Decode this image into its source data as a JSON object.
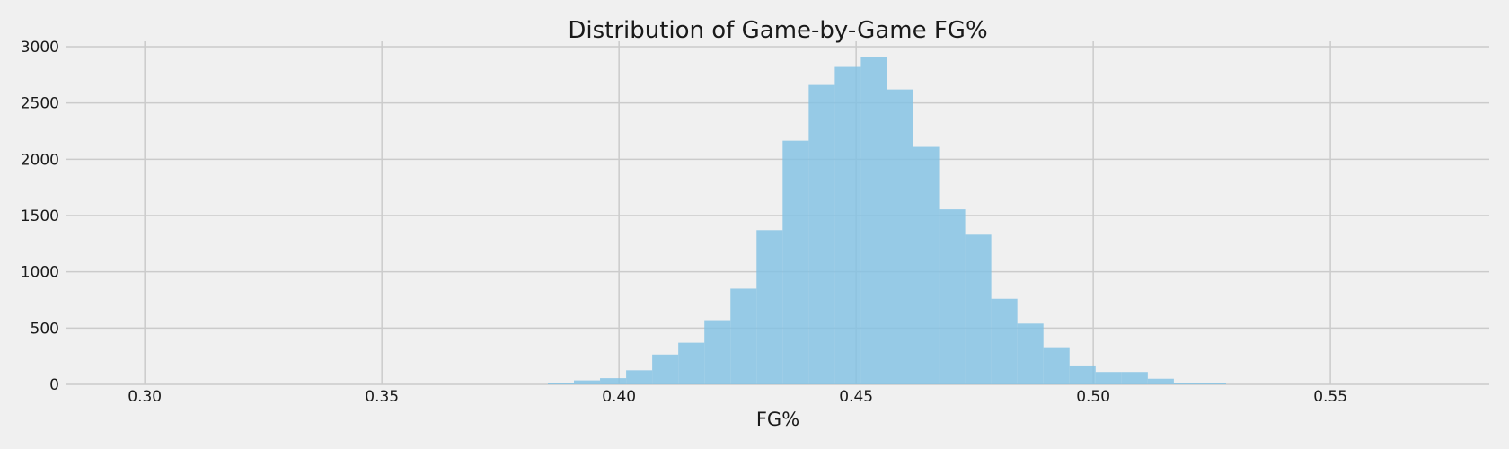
{
  "chart_data": {
    "type": "bar",
    "title": "Distribution of Game-by-Game FG%",
    "xlabel": "FG%",
    "ylabel": "",
    "xlim": [
      0.285,
      0.5835
    ],
    "ylim": [
      0,
      3000
    ],
    "xticks": [
      "0.30",
      "0.35",
      "0.40",
      "0.45",
      "0.50",
      "0.55"
    ],
    "xtick_values": [
      0.3,
      0.35,
      0.4,
      0.45,
      0.5,
      0.55
    ],
    "yticks": [
      "0",
      "500",
      "1000",
      "1500",
      "2000",
      "2500",
      "3000"
    ],
    "ytick_values": [
      0,
      500,
      1000,
      1500,
      2000,
      2500,
      3000
    ],
    "grid": true,
    "legend": "none",
    "color": "#7fc1e3",
    "bin_width": 0.0055,
    "bins": [
      {
        "x0": 0.385,
        "count": 8
      },
      {
        "x0": 0.3905,
        "count": 35
      },
      {
        "x0": 0.396,
        "count": 55
      },
      {
        "x0": 0.4015,
        "count": 125
      },
      {
        "x0": 0.407,
        "count": 265
      },
      {
        "x0": 0.4125,
        "count": 370
      },
      {
        "x0": 0.418,
        "count": 570
      },
      {
        "x0": 0.4235,
        "count": 850
      },
      {
        "x0": 0.429,
        "count": 1370
      },
      {
        "x0": 0.4345,
        "count": 2165
      },
      {
        "x0": 0.44,
        "count": 2660
      },
      {
        "x0": 0.4455,
        "count": 2820
      },
      {
        "x0": 0.451,
        "count": 2910
      },
      {
        "x0": 0.4565,
        "count": 2620
      },
      {
        "x0": 0.462,
        "count": 2110
      },
      {
        "x0": 0.4675,
        "count": 1555
      },
      {
        "x0": 0.473,
        "count": 1330
      },
      {
        "x0": 0.4785,
        "count": 760
      },
      {
        "x0": 0.484,
        "count": 540
      },
      {
        "x0": 0.4895,
        "count": 330
      },
      {
        "x0": 0.495,
        "count": 160
      },
      {
        "x0": 0.5005,
        "count": 110
      },
      {
        "x0": 0.506,
        "count": 110
      },
      {
        "x0": 0.5115,
        "count": 50
      },
      {
        "x0": 0.517,
        "count": 10
      },
      {
        "x0": 0.5225,
        "count": 8
      }
    ]
  }
}
